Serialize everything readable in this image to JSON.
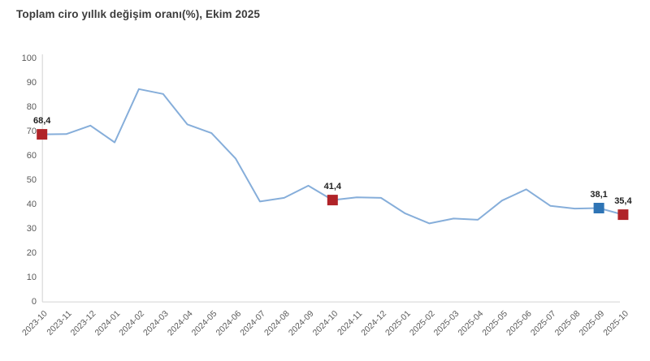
{
  "title": "Toplam ciro yıllık değişim oranı(%), Ekim 2025",
  "colors": {
    "line": "#86aeda",
    "marker_red": "#b02328",
    "marker_blue": "#2e74b5",
    "axis_line": "#d9d9d9",
    "tick_text": "#595959",
    "title_text": "#3c3c3c",
    "point_label_text": "#1f1f1f"
  },
  "chart_data": {
    "type": "line",
    "title": "Toplam ciro yıllık değişim oranı(%), Ekim 2025",
    "xlabel": "",
    "ylabel": "",
    "ylim": [
      0,
      100
    ],
    "ytick_step": 10,
    "grid": false,
    "legend": false,
    "x": [
      "2023-10",
      "2023-11",
      "2023-12",
      "2024-01",
      "2024-02",
      "2024-03",
      "2024-04",
      "2024-05",
      "2024-06",
      "2024-07",
      "2024-08",
      "2024-09",
      "2024-10",
      "2024-11",
      "2024-12",
      "2025-01",
      "2025-02",
      "2025-03",
      "2025-04",
      "2025-05",
      "2025-06",
      "2025-07",
      "2025-08",
      "2025-09",
      "2025-10"
    ],
    "values": [
      68.4,
      68.5,
      72.0,
      65.1,
      87.0,
      85.0,
      72.5,
      68.9,
      58.4,
      40.8,
      42.3,
      47.3,
      41.4,
      42.5,
      42.3,
      35.9,
      31.8,
      33.8,
      33.3,
      41.2,
      45.8,
      39.0,
      37.9,
      38.1,
      35.4
    ],
    "highlighted_points": [
      {
        "x": "2023-10",
        "value": 68.4,
        "label": "68,4",
        "color": "red"
      },
      {
        "x": "2024-10",
        "value": 41.4,
        "label": "41,4",
        "color": "red"
      },
      {
        "x": "2025-09",
        "value": 38.1,
        "label": "38,1",
        "color": "blue"
      },
      {
        "x": "2025-10",
        "value": 35.4,
        "label": "35,4",
        "color": "red"
      }
    ]
  }
}
